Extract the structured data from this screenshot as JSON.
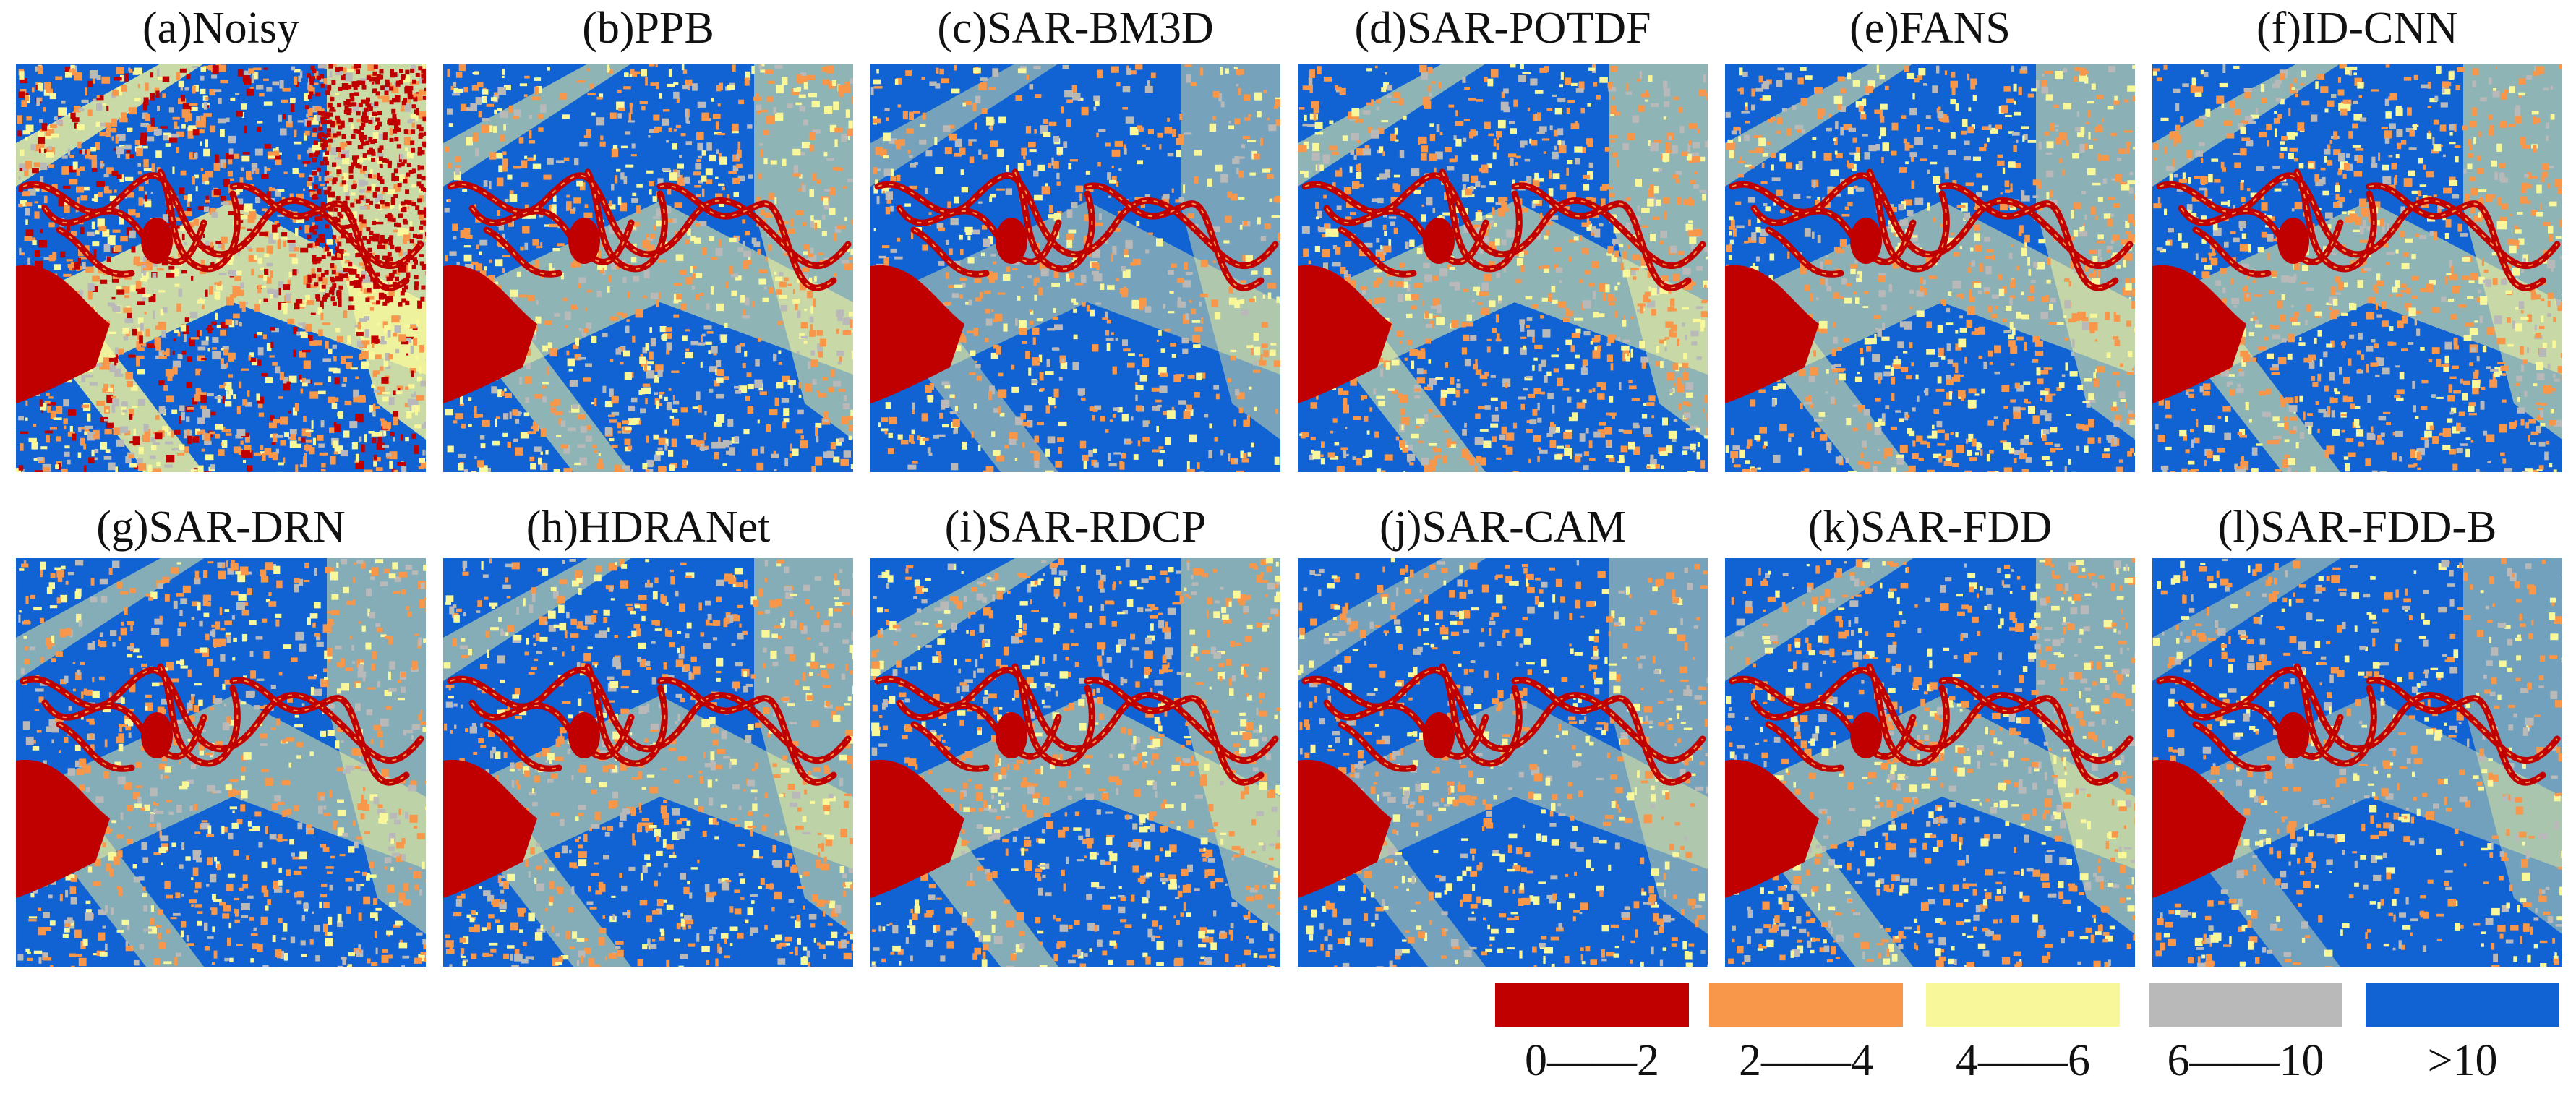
{
  "panels": [
    {
      "label": "(a)Noisy",
      "density": 1.0
    },
    {
      "label": "(b)PPB",
      "density": 0.55
    },
    {
      "label": "(c)SAR-BM3D",
      "density": 0.35
    },
    {
      "label": "(d)SAR-POTDF",
      "density": 0.55
    },
    {
      "label": "(e)FANS",
      "density": 0.5
    },
    {
      "label": "(f)ID-CNN",
      "density": 0.55
    },
    {
      "label": "(g)SAR-DRN",
      "density": 0.45
    },
    {
      "label": "(h)HDRANet",
      "density": 0.45
    },
    {
      "label": "(i)SAR-RDCP",
      "density": 0.45
    },
    {
      "label": "(j)SAR-CAM",
      "density": 0.35
    },
    {
      "label": "(k)SAR-FDD",
      "density": 0.45
    },
    {
      "label": "(l)SAR-FDD-B",
      "density": 0.3
    }
  ],
  "legend": [
    {
      "label": "0——2",
      "color": "#c00000"
    },
    {
      "label": "2——4",
      "color": "#f8964a"
    },
    {
      "label": "4——6",
      "color": "#f8f79a"
    },
    {
      "label": "6——10",
      "color": "#b9b9b9"
    },
    {
      "label": ">10",
      "color": "#1163d4"
    }
  ],
  "colors": {
    "background": "#1163d4",
    "water": "#c00000",
    "orange": "#f8964a",
    "yellow": "#f8f79a",
    "gray": "#b9b9b9"
  }
}
